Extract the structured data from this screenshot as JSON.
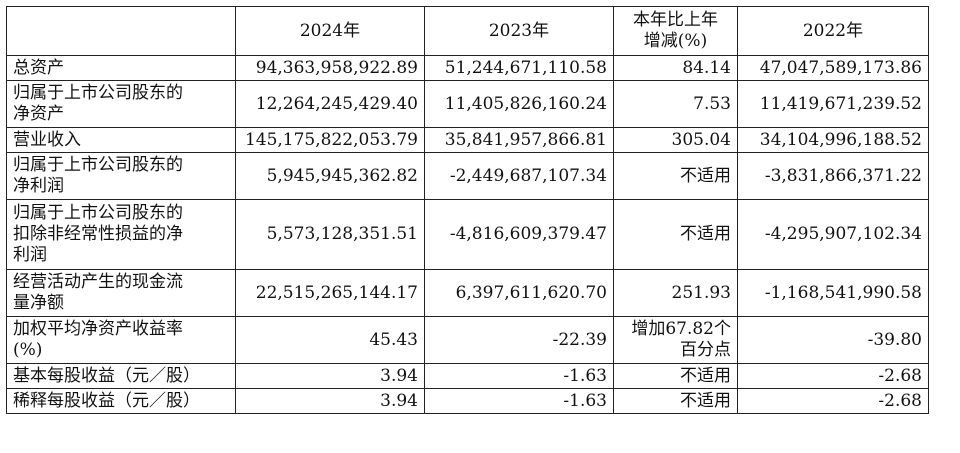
{
  "header": {
    "label": "",
    "col_2024": "2024年",
    "col_2023": "2023年",
    "col_change": "本年比上年\n增减(%)",
    "col_2022": "2022年"
  },
  "rows": [
    {
      "label": "总资产",
      "v2024": "94,363,958,922.89",
      "v2023": "51,244,671,110.58",
      "change": "84.14",
      "v2022": "47,047,589,173.86"
    },
    {
      "label": "归属于上市公司股东的\n净资产",
      "v2024": "12,264,245,429.40",
      "v2023": "11,405,826,160.24",
      "change": "7.53",
      "v2022": "11,419,671,239.52"
    },
    {
      "label": "营业收入",
      "v2024": "145,175,822,053.79",
      "v2023": "35,841,957,866.81",
      "change": "305.04",
      "v2022": "34,104,996,188.52"
    },
    {
      "label": "归属于上市公司股东的\n净利润",
      "v2024": "5,945,945,362.82",
      "v2023": "-2,449,687,107.34",
      "change": "不适用",
      "v2022": "-3,831,866,371.22"
    },
    {
      "label": "归属于上市公司股东的\n扣除非经常性损益的净\n利润",
      "v2024": "5,573,128,351.51",
      "v2023": "-4,816,609,379.47",
      "change": "不适用",
      "v2022": "-4,295,907,102.34"
    },
    {
      "label": "经营活动产生的现金流\n量净额",
      "v2024": "22,515,265,144.17",
      "v2023": "6,397,611,620.70",
      "change": "251.93",
      "v2022": "-1,168,541,990.58"
    },
    {
      "label": "加权平均净资产收益率\n(%)",
      "v2024": "45.43",
      "v2023": "-22.39",
      "change": "增加67.82个\n百分点",
      "v2022": "-39.80"
    },
    {
      "label": "基本每股收益（元／股）",
      "v2024": "3.94",
      "v2023": "-1.63",
      "change": "不适用",
      "v2022": "-2.68"
    },
    {
      "label": "稀释每股收益（元／股）",
      "v2024": "3.94",
      "v2023": "-1.63",
      "change": "不适用",
      "v2022": "-2.68"
    }
  ]
}
